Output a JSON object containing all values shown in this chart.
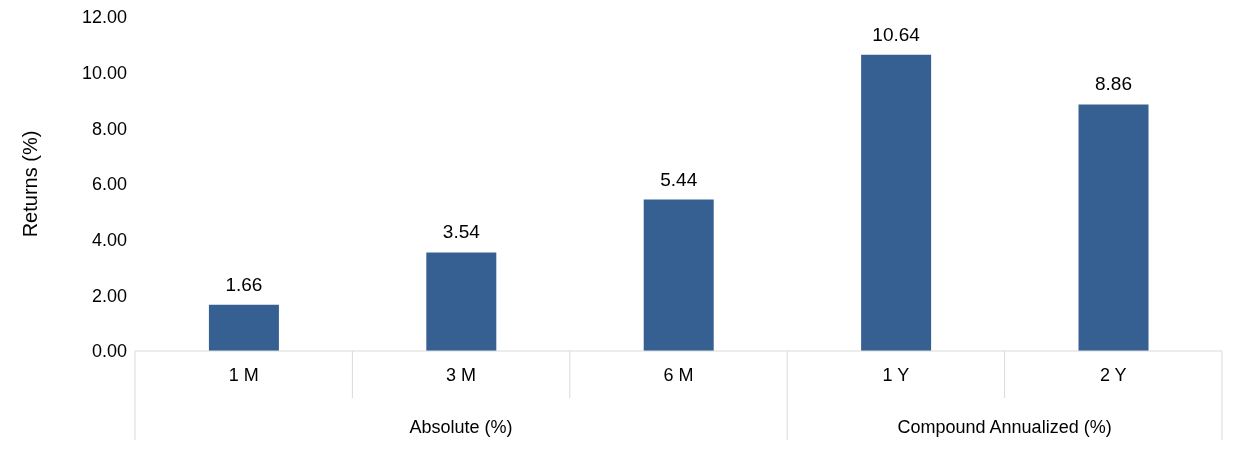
{
  "chart_data": {
    "type": "bar",
    "ylabel": "Returns (%)",
    "categories": [
      "1 M",
      "3 M",
      "6 M",
      "1 Y",
      "2 Y"
    ],
    "values": [
      1.66,
      3.54,
      5.44,
      10.64,
      8.86
    ],
    "color": "#376092",
    "ylim": [
      0,
      12
    ],
    "yticks": [
      {
        "value": 0,
        "label": "0.00"
      },
      {
        "value": 2,
        "label": "2.00"
      },
      {
        "value": 4,
        "label": "4.00"
      },
      {
        "value": 6,
        "label": "6.00"
      },
      {
        "value": 8,
        "label": "8.00"
      },
      {
        "value": 10,
        "label": "10.00"
      },
      {
        "value": 12,
        "label": "12.00"
      }
    ],
    "data_labels": true,
    "grid": false,
    "legend": false,
    "annotations": [
      "Absolute (%)",
      "Compound Annualized (%)"
    ]
  }
}
